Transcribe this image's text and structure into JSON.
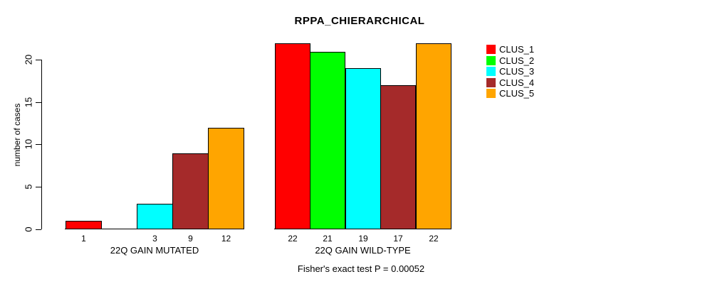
{
  "page": {
    "title": "RPPA_CHIERARCHICAL",
    "ylabel": "number of cases",
    "footnote": "Fisher's exact test P = 0.00052"
  },
  "chart_data": {
    "type": "bar",
    "title": "RPPA_CHIERARCHICAL",
    "xlabel": "",
    "ylabel": "number of cases",
    "ylim": [
      0,
      22.5
    ],
    "y_ticks": [
      0,
      5,
      10,
      15,
      20
    ],
    "grid": false,
    "legend_position": "right",
    "categories": [
      "22Q GAIN MUTATED",
      "22Q GAIN WILD-TYPE"
    ],
    "series": [
      {
        "name": "CLUS_1",
        "color": "#ff0000",
        "values": [
          1,
          22
        ]
      },
      {
        "name": "CLUS_2",
        "color": "#00ff00",
        "values": [
          0,
          21
        ]
      },
      {
        "name": "CLUS_3",
        "color": "#00ffff",
        "values": [
          3,
          19
        ]
      },
      {
        "name": "CLUS_4",
        "color": "#a52a2a",
        "values": [
          9,
          17
        ]
      },
      {
        "name": "CLUS_5",
        "color": "#ffa500",
        "values": [
          12,
          22
        ]
      }
    ],
    "bar_value_labels": [
      [
        "1",
        "",
        "3",
        "9",
        "12"
      ],
      [
        "22",
        "21",
        "19",
        "17",
        "22"
      ]
    ],
    "annotation": "Fisher's exact test P = 0.00052"
  }
}
